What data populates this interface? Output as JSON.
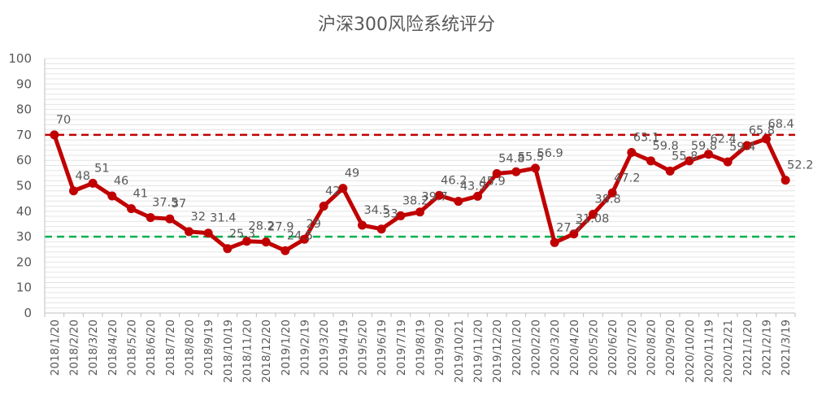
{
  "chart_data": {
    "type": "line",
    "title": "沪深300风险系统评分",
    "xlabel": "",
    "ylabel": "",
    "ylim": [
      0,
      100
    ],
    "yticks": [
      0,
      10,
      20,
      30,
      40,
      50,
      60,
      70,
      80,
      90,
      100
    ],
    "categories": [
      "2018/1/20",
      "2018/2/20",
      "2018/3/20",
      "2018/4/20",
      "2018/5/20",
      "2018/6/20",
      "2018/7/20",
      "2018/8/20",
      "2018/9/19",
      "2018/10/19",
      "2018/11/20",
      "2018/12/20",
      "2019/1/20",
      "2019/2/19",
      "2019/3/20",
      "2019/4/19",
      "2019/5/20",
      "2019/6/19",
      "2019/7/19",
      "2019/8/19",
      "2019/9/20",
      "2019/10/21",
      "2019/11/20",
      "2019/12/20",
      "2020/1/20",
      "2020/2/20",
      "2020/3/20",
      "2020/4/20",
      "2020/5/20",
      "2020/6/20",
      "2020/7/20",
      "2020/8/20",
      "2020/9/20",
      "2020/10/20",
      "2020/11/19",
      "2020/12/21",
      "2021/1/20",
      "2021/2/19",
      "2021/3/19"
    ],
    "series": [
      {
        "name": "",
        "color": "#c00000",
        "values": [
          70,
          48,
          51,
          46,
          41,
          37.5,
          37,
          32,
          31.4,
          25.3,
          28.2,
          27.9,
          24.5,
          29,
          42,
          49,
          34.5,
          33,
          38.2,
          39.7,
          46.2,
          43.9,
          45.9,
          54.8,
          55.5,
          56.9,
          27.7,
          31.08,
          38.8,
          47.2,
          63.1,
          59.8,
          55.8,
          59.8,
          62.4,
          59.4,
          65.8,
          68.4,
          52.2
        ],
        "labels": [
          "70",
          "48",
          "51",
          "46",
          "41",
          "37.5",
          "37",
          "32",
          "31.4",
          "25.3",
          "28.2",
          "27.9",
          "24.5",
          "29",
          "42",
          "49",
          "34.5",
          "33",
          "38.2",
          "39.7",
          "46.2",
          "43.9",
          "45.9",
          "54.8",
          "55.5",
          "56.9",
          "27.7",
          "31.08",
          "38.8",
          "47.2",
          "63.1",
          "59.8",
          "55.8",
          "59.8",
          "62.4",
          "59.4",
          "65.8",
          "68.4",
          "52.2"
        ]
      }
    ],
    "reference_lines": [
      {
        "value": 70,
        "color": "#c00000",
        "style": "dashed"
      },
      {
        "value": 30,
        "color": "#00b050",
        "style": "dashed"
      }
    ],
    "grid": true,
    "legend": "none"
  }
}
